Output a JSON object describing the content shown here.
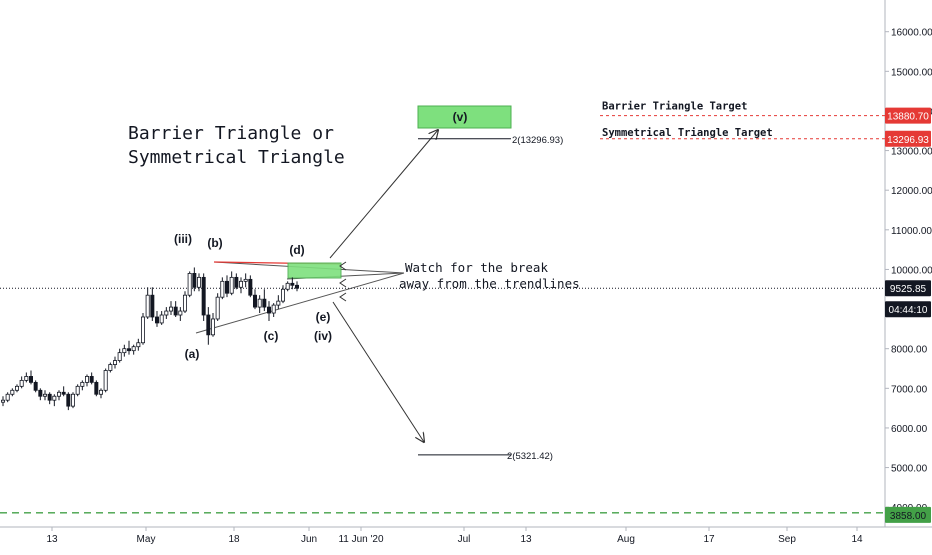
{
  "chart_data": {
    "type": "candlestick",
    "y_axis": {
      "min": 3500,
      "max": 16800,
      "ticks": [
        "16000.00",
        "15000.00",
        "14000.00",
        "13000.00",
        "12000.00",
        "11000.00",
        "10000.00",
        "9000.00",
        "8000.00",
        "7000.00",
        "6000.00",
        "5000.00",
        "4000.00"
      ]
    },
    "x_axis": {
      "labels": [
        "13",
        "May",
        "18",
        "Jun",
        "11 Jun '20",
        "Jul",
        "13",
        "Aug",
        "17",
        "Sep",
        "14"
      ]
    },
    "title_lines": [
      "Barrier Triangle or",
      "Symmetrical Triangle"
    ],
    "note_lines": [
      "Watch for the break",
      "away from the trendlines"
    ],
    "wave_labels": [
      "(iii)",
      "(b)",
      "(a)",
      "(c)",
      "(d)",
      "(e)",
      "(iv)",
      "(v)"
    ],
    "target_labels": [
      "Barrier Triangle Target",
      "Symmetrical Triangle Target"
    ],
    "projection_labels": [
      "2(13296.93)",
      "2(5321.42)"
    ],
    "price_badges": [
      "13880.70",
      "13296.93",
      "9525.85",
      "04:44:10",
      "3858.00"
    ],
    "current_price": 9525.85,
    "levels": {
      "barrier_target": 13880.7,
      "symmetrical_target": 13296.93,
      "support": 3858.0,
      "upper_projection": 13296.93,
      "lower_projection": 5321.42
    },
    "candles": [
      [
        6650,
        6800,
        6550,
        6700
      ],
      [
        6700,
        6900,
        6650,
        6850
      ],
      [
        6850,
        7000,
        6800,
        6950
      ],
      [
        6950,
        7100,
        6900,
        7050
      ],
      [
        7050,
        7300,
        7000,
        7200
      ],
      [
        7200,
        7400,
        7150,
        7300
      ],
      [
        7300,
        7450,
        7100,
        7150
      ],
      [
        7150,
        7200,
        6900,
        6950
      ],
      [
        6950,
        7000,
        6700,
        6800
      ],
      [
        6800,
        6950,
        6700,
        6850
      ],
      [
        6850,
        6900,
        6600,
        6700
      ],
      [
        6700,
        6850,
        6550,
        6800
      ],
      [
        6800,
        6950,
        6700,
        6900
      ],
      [
        6900,
        7050,
        6800,
        6850
      ],
      [
        6850,
        6900,
        6450,
        6550
      ],
      [
        6550,
        6900,
        6500,
        6850
      ],
      [
        6850,
        7100,
        6800,
        7050
      ],
      [
        7050,
        7200,
        6950,
        7150
      ],
      [
        7150,
        7350,
        7050,
        7300
      ],
      [
        7300,
        7400,
        7100,
        7150
      ],
      [
        7150,
        7200,
        6800,
        6850
      ],
      [
        6850,
        7000,
        6750,
        6950
      ],
      [
        6950,
        7500,
        6900,
        7450
      ],
      [
        7450,
        7650,
        7400,
        7600
      ],
      [
        7600,
        7800,
        7500,
        7700
      ],
      [
        7700,
        8000,
        7650,
        7900
      ],
      [
        7900,
        8100,
        7800,
        8000
      ],
      [
        8000,
        8200,
        7850,
        7950
      ],
      [
        7950,
        8100,
        7850,
        8050
      ],
      [
        8050,
        8250,
        7950,
        8150
      ],
      [
        8150,
        8900,
        8100,
        8800
      ],
      [
        8800,
        9550,
        8750,
        9350
      ],
      [
        9350,
        9550,
        8700,
        8800
      ],
      [
        8800,
        8950,
        8550,
        8650
      ],
      [
        8650,
        8950,
        8600,
        8850
      ],
      [
        8850,
        9050,
        8750,
        8950
      ],
      [
        8950,
        9200,
        8850,
        9050
      ],
      [
        9050,
        9200,
        8800,
        8850
      ],
      [
        8850,
        9050,
        8700,
        8950
      ],
      [
        8950,
        9450,
        8900,
        9350
      ],
      [
        9350,
        9950,
        9300,
        9900
      ],
      [
        9900,
        10050,
        9450,
        9550
      ],
      [
        9550,
        9900,
        9450,
        9800
      ],
      [
        9800,
        9900,
        8700,
        8850
      ],
      [
        8850,
        9050,
        8100,
        8350
      ],
      [
        8350,
        8900,
        8300,
        8750
      ],
      [
        8750,
        9400,
        8700,
        9300
      ],
      [
        9300,
        9800,
        9250,
        9700
      ],
      [
        9700,
        9850,
        9300,
        9400
      ],
      [
        9400,
        9950,
        9350,
        9800
      ],
      [
        9800,
        9900,
        9500,
        9550
      ],
      [
        9550,
        9800,
        9400,
        9700
      ],
      [
        9700,
        9900,
        9550,
        9750
      ],
      [
        9750,
        9850,
        9300,
        9350
      ],
      [
        9350,
        9500,
        9000,
        9050
      ],
      [
        9050,
        9350,
        8900,
        9250
      ],
      [
        9250,
        9500,
        8950,
        9050
      ],
      [
        9050,
        9200,
        8700,
        8900
      ],
      [
        8900,
        9150,
        8800,
        9100
      ],
      [
        9100,
        9350,
        9000,
        9200
      ],
      [
        9200,
        9600,
        9150,
        9500
      ],
      [
        9500,
        9700,
        9450,
        9650
      ],
      [
        9650,
        9800,
        9500,
        9600
      ],
      [
        9600,
        9700,
        9450,
        9525.85
      ]
    ]
  }
}
